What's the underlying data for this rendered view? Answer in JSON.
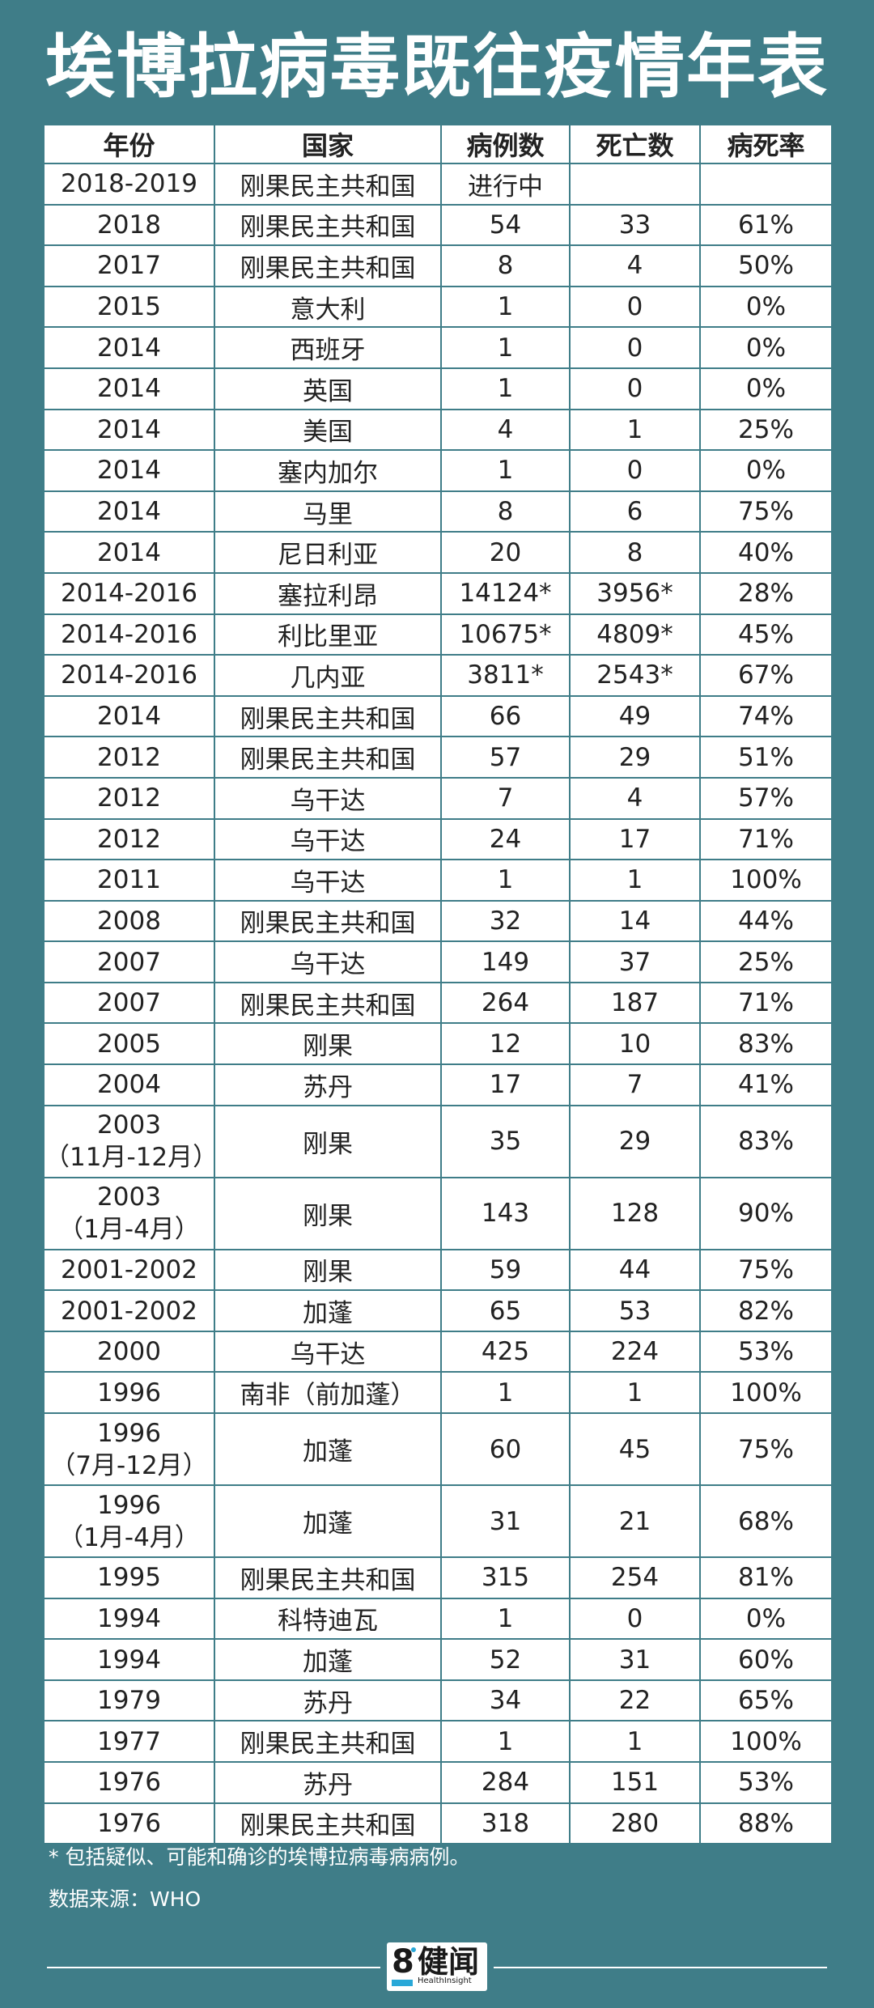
{
  "title": "埃博拉病毒既往疫情年表",
  "table": {
    "headers": [
      "年份",
      "国家",
      "病例数",
      "死亡数",
      "病死率"
    ],
    "rows": [
      {
        "year": "2018-2019",
        "year_sub": "",
        "country": "刚果民主共和国",
        "cases": "进行中",
        "deaths": "",
        "rate": ""
      },
      {
        "year": "2018",
        "year_sub": "",
        "country": "刚果民主共和国",
        "cases": "54",
        "deaths": "33",
        "rate": "61%"
      },
      {
        "year": "2017",
        "year_sub": "",
        "country": "刚果民主共和国",
        "cases": "8",
        "deaths": "4",
        "rate": "50%"
      },
      {
        "year": "2015",
        "year_sub": "",
        "country": "意大利",
        "cases": "1",
        "deaths": "0",
        "rate": "0%"
      },
      {
        "year": "2014",
        "year_sub": "",
        "country": "西班牙",
        "cases": "1",
        "deaths": "0",
        "rate": "0%"
      },
      {
        "year": "2014",
        "year_sub": "",
        "country": "英国",
        "cases": "1",
        "deaths": "0",
        "rate": "0%"
      },
      {
        "year": "2014",
        "year_sub": "",
        "country": "美国",
        "cases": "4",
        "deaths": "1",
        "rate": "25%"
      },
      {
        "year": "2014",
        "year_sub": "",
        "country": "塞内加尔",
        "cases": "1",
        "deaths": "0",
        "rate": "0%"
      },
      {
        "year": "2014",
        "year_sub": "",
        "country": "马里",
        "cases": "8",
        "deaths": "6",
        "rate": "75%"
      },
      {
        "year": "2014",
        "year_sub": "",
        "country": "尼日利亚",
        "cases": "20",
        "deaths": "8",
        "rate": "40%"
      },
      {
        "year": "2014-2016",
        "year_sub": "",
        "country": "塞拉利昂",
        "cases": "14124*",
        "deaths": "3956*",
        "rate": "28%"
      },
      {
        "year": "2014-2016",
        "year_sub": "",
        "country": "利比里亚",
        "cases": "10675*",
        "deaths": "4809*",
        "rate": "45%"
      },
      {
        "year": "2014-2016",
        "year_sub": "",
        "country": "几内亚",
        "cases": "3811*",
        "deaths": "2543*",
        "rate": "67%"
      },
      {
        "year": "2014",
        "year_sub": "",
        "country": "刚果民主共和国",
        "cases": "66",
        "deaths": "49",
        "rate": "74%"
      },
      {
        "year": "2012",
        "year_sub": "",
        "country": "刚果民主共和国",
        "cases": "57",
        "deaths": "29",
        "rate": "51%"
      },
      {
        "year": "2012",
        "year_sub": "",
        "country": "乌干达",
        "cases": "7",
        "deaths": "4",
        "rate": "57%"
      },
      {
        "year": "2012",
        "year_sub": "",
        "country": "乌干达",
        "cases": "24",
        "deaths": "17",
        "rate": "71%"
      },
      {
        "year": "2011",
        "year_sub": "",
        "country": "乌干达",
        "cases": "1",
        "deaths": "1",
        "rate": "100%"
      },
      {
        "year": "2008",
        "year_sub": "",
        "country": "刚果民主共和国",
        "cases": "32",
        "deaths": "14",
        "rate": "44%"
      },
      {
        "year": "2007",
        "year_sub": "",
        "country": "乌干达",
        "cases": "149",
        "deaths": "37",
        "rate": "25%"
      },
      {
        "year": "2007",
        "year_sub": "",
        "country": "刚果民主共和国",
        "cases": "264",
        "deaths": "187",
        "rate": "71%"
      },
      {
        "year": "2005",
        "year_sub": "",
        "country": "刚果",
        "cases": "12",
        "deaths": "10",
        "rate": "83%"
      },
      {
        "year": "2004",
        "year_sub": "",
        "country": "苏丹",
        "cases": "17",
        "deaths": "7",
        "rate": "41%"
      },
      {
        "year": "2003",
        "year_sub": "（11月-12月）",
        "country": "刚果",
        "cases": "35",
        "deaths": "29",
        "rate": "83%"
      },
      {
        "year": "2003",
        "year_sub": "（1月-4月）",
        "country": "刚果",
        "cases": "143",
        "deaths": "128",
        "rate": "90%"
      },
      {
        "year": "2001-2002",
        "year_sub": "",
        "country": "刚果",
        "cases": "59",
        "deaths": "44",
        "rate": "75%"
      },
      {
        "year": "2001-2002",
        "year_sub": "",
        "country": "加蓬",
        "cases": "65",
        "deaths": "53",
        "rate": "82%"
      },
      {
        "year": "2000",
        "year_sub": "",
        "country": "乌干达",
        "cases": "425",
        "deaths": "224",
        "rate": "53%"
      },
      {
        "year": "1996",
        "year_sub": "",
        "country": "南非（前加蓬）",
        "cases": "1",
        "deaths": "1",
        "rate": "100%"
      },
      {
        "year": "1996",
        "year_sub": "（7月-12月）",
        "country": "加蓬",
        "cases": "60",
        "deaths": "45",
        "rate": "75%"
      },
      {
        "year": "1996",
        "year_sub": "（1月-4月）",
        "country": "加蓬",
        "cases": "31",
        "deaths": "21",
        "rate": "68%"
      },
      {
        "year": "1995",
        "year_sub": "",
        "country": "刚果民主共和国",
        "cases": "315",
        "deaths": "254",
        "rate": "81%"
      },
      {
        "year": "1994",
        "year_sub": "",
        "country": "科特迪瓦",
        "cases": "1",
        "deaths": "0",
        "rate": "0%"
      },
      {
        "year": "1994",
        "year_sub": "",
        "country": "加蓬",
        "cases": "52",
        "deaths": "31",
        "rate": "60%"
      },
      {
        "year": "1979",
        "year_sub": "",
        "country": "苏丹",
        "cases": "34",
        "deaths": "22",
        "rate": "65%"
      },
      {
        "year": "1977",
        "year_sub": "",
        "country": "刚果民主共和国",
        "cases": "1",
        "deaths": "1",
        "rate": "100%"
      },
      {
        "year": "1976",
        "year_sub": "",
        "country": "苏丹",
        "cases": "284",
        "deaths": "151",
        "rate": "53%"
      },
      {
        "year": "1976",
        "year_sub": "",
        "country": "刚果民主共和国",
        "cases": "318",
        "deaths": "280",
        "rate": "88%"
      }
    ]
  },
  "footnote": "* 包括疑似、可能和确诊的埃博拉病毒病病例。",
  "source": "数据来源：WHO",
  "logo": {
    "number": "8",
    "name_cn": "健闻",
    "name_en": "HealthInsight"
  },
  "colors": {
    "background": "#3f7d88",
    "table_bg": "#ffffff",
    "text": "#222222",
    "accent": "#29a8d8"
  }
}
